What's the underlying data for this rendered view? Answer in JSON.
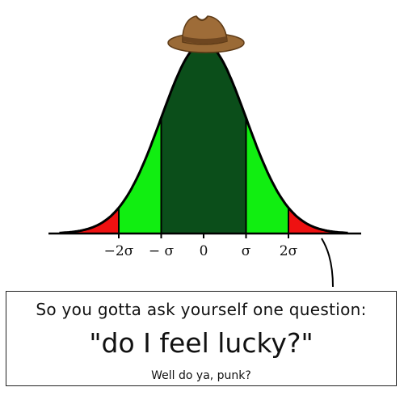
{
  "chart_data": {
    "type": "area",
    "distribution": "normal",
    "mean": 0,
    "sd": 1,
    "xlim": [
      -3.4,
      3.4
    ],
    "ticks": [
      {
        "value": -2,
        "label": "−2σ"
      },
      {
        "value": -1,
        "label": "− σ"
      },
      {
        "value": 0,
        "label": "0"
      },
      {
        "value": 1,
        "label": "σ"
      },
      {
        "value": 2,
        "label": "2σ"
      }
    ],
    "regions": [
      {
        "from": -3.4,
        "to": -2,
        "color": "#ee1111"
      },
      {
        "from": -2,
        "to": -1,
        "color": "#11ee11"
      },
      {
        "from": -1,
        "to": 1,
        "color": "#0b4e1a"
      },
      {
        "from": 1,
        "to": 2,
        "color": "#11ee11"
      },
      {
        "from": 2,
        "to": 3.4,
        "color": "#ee1111"
      }
    ],
    "curve_color": "#000000",
    "hat_color": "#9a6a36"
  },
  "caption": {
    "line1": "So you gotta ask yourself one question:",
    "line2": "\"do I feel lucky?\"",
    "line3": "Well do ya, punk?"
  }
}
